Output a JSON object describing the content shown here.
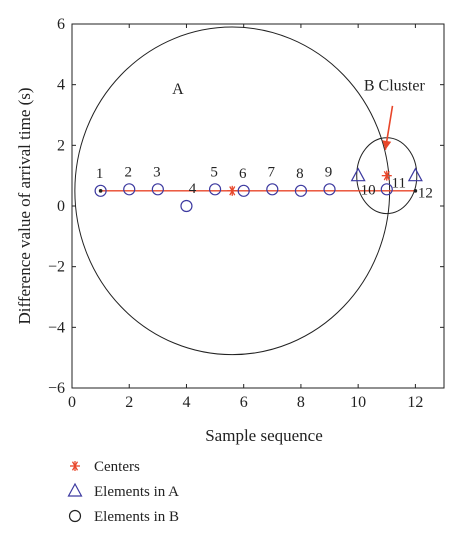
{
  "chart_data": {
    "type": "scatter",
    "xlabel": "Sample sequence",
    "ylabel": "Difference value of arrival time (s)",
    "xlim": [
      0,
      13
    ],
    "ylim": [
      -6,
      6
    ],
    "x_ticks": [
      0,
      2,
      4,
      6,
      8,
      10,
      12
    ],
    "y_ticks": [
      -6,
      -4,
      -2,
      0,
      2,
      4,
      6
    ],
    "grid": false,
    "colors": {
      "centers": "#e8462a",
      "markers": "#3d3aa0",
      "line": "#e8462a",
      "circle": "#222222"
    },
    "points": [
      {
        "label": "1",
        "x": 1,
        "y": 0.5
      },
      {
        "label": "2",
        "x": 2,
        "y": 0.55
      },
      {
        "label": "3",
        "x": 3,
        "y": 0.55
      },
      {
        "label": "4",
        "x": 4,
        "y": 0.0
      },
      {
        "label": "5",
        "x": 5,
        "y": 0.55
      },
      {
        "label": "6",
        "x": 6,
        "y": 0.5
      },
      {
        "label": "7",
        "x": 7,
        "y": 0.55
      },
      {
        "label": "8",
        "x": 8,
        "y": 0.5
      },
      {
        "label": "9",
        "x": 9,
        "y": 0.55
      },
      {
        "label": "10",
        "x": 10,
        "y": 1.0
      },
      {
        "label": "11",
        "x": 11,
        "y": 0.55
      },
      {
        "label": "12",
        "x": 12,
        "y": 1.0
      }
    ],
    "series": [
      {
        "name": "Centers",
        "marker": "asterisk",
        "points": [
          {
            "x": 5.6,
            "y": 0.5
          },
          {
            "x": 11.0,
            "y": 1.0
          }
        ]
      },
      {
        "name": "Elements in A",
        "marker": "triangle",
        "points": [
          {
            "x": 10,
            "y": 1.0
          },
          {
            "x": 12,
            "y": 1.0
          }
        ]
      },
      {
        "name": "Elements in B",
        "marker": "circle",
        "points": [
          {
            "x": 1,
            "y": 0.5
          },
          {
            "x": 2,
            "y": 0.55
          },
          {
            "x": 3,
            "y": 0.55
          },
          {
            "x": 4,
            "y": 0.0
          },
          {
            "x": 5,
            "y": 0.55
          },
          {
            "x": 6,
            "y": 0.5
          },
          {
            "x": 7,
            "y": 0.55
          },
          {
            "x": 8,
            "y": 0.5
          },
          {
            "x": 9,
            "y": 0.55
          },
          {
            "x": 11,
            "y": 0.55
          }
        ]
      }
    ],
    "connecting_line": {
      "x": [
        1,
        12
      ],
      "y": [
        0.5,
        0.5
      ]
    },
    "clusters": [
      {
        "label": "A",
        "center": {
          "x": 5.6,
          "y": 0.5
        },
        "radius_y": 5.4,
        "radius_x": 5.5,
        "label_position": {
          "x": 3.5,
          "y": 3.7
        }
      },
      {
        "label": "B Cluster",
        "center": {
          "x": 11.0,
          "y": 1.0
        },
        "radius_y": 1.25,
        "radius_x": 1.05,
        "label_position": {
          "x": 10.2,
          "y": 3.8
        }
      }
    ],
    "annotation_arrow": {
      "from": {
        "x": 11.2,
        "y": 3.3
      },
      "to": {
        "x": 10.95,
        "y": 1.85
      }
    },
    "legend": {
      "placement": "below",
      "entries": [
        {
          "label": "Centers",
          "marker": "asterisk"
        },
        {
          "label": "Elements in A",
          "marker": "triangle"
        },
        {
          "label": "Elements in B",
          "marker": "circle"
        }
      ]
    }
  }
}
